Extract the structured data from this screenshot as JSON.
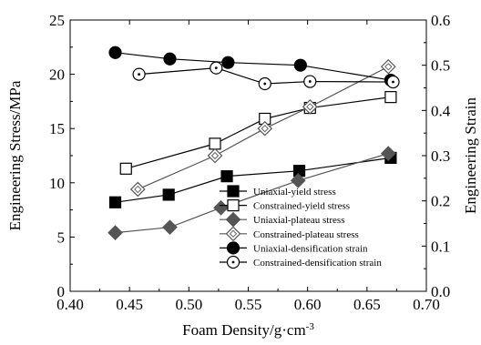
{
  "chart_data": {
    "type": "line",
    "xlabel": "Foam Density/g·cm",
    "xlabel_superscript": "-3",
    "ylabel_left": "Engineering Stress/MPa",
    "ylabel_right": "Engineering Strain",
    "xlim": [
      0.4,
      0.7
    ],
    "ylim_left": [
      0,
      25
    ],
    "ylim_right": [
      0.0,
      0.6
    ],
    "x_ticks": [
      "0.40",
      "0.45",
      "0.50",
      "0.55",
      "0.60",
      "0.65",
      "0.70"
    ],
    "y_left_ticks": [
      "0",
      "5",
      "10",
      "15",
      "20",
      "25"
    ],
    "y_right_ticks": [
      "0.0",
      "0.1",
      "0.2",
      "0.3",
      "0.4",
      "0.5",
      "0.6"
    ],
    "grid": false,
    "legend_position": "bottom-right",
    "series": [
      {
        "name": "Uniaxial-yield stress",
        "axis": "left",
        "marker": "square-filled",
        "color": "#000000",
        "x": [
          0.438,
          0.483,
          0.532,
          0.593,
          0.67
        ],
        "y": [
          8.2,
          8.9,
          10.6,
          11.1,
          12.3
        ]
      },
      {
        "name": "Constrained-yield stress",
        "axis": "left",
        "marker": "square-open",
        "color": "#000000",
        "x": [
          0.447,
          0.522,
          0.564,
          0.602,
          0.67
        ],
        "y": [
          11.3,
          13.6,
          15.9,
          16.9,
          17.9
        ]
      },
      {
        "name": "Uniaxial-plateau stress",
        "axis": "left",
        "marker": "diamond-filled",
        "color": "#555555",
        "x": [
          0.438,
          0.484,
          0.527,
          0.592,
          0.668
        ],
        "y": [
          5.4,
          5.9,
          7.7,
          10.2,
          12.7
        ]
      },
      {
        "name": "Constrained-plateau stress",
        "axis": "left",
        "marker": "diamond-open",
        "color": "#555555",
        "x": [
          0.457,
          0.522,
          0.564,
          0.602,
          0.668
        ],
        "y": [
          9.4,
          12.5,
          15.0,
          17.0,
          20.7
        ]
      },
      {
        "name": "Uniaxial-densification strain",
        "axis": "right",
        "marker": "circle-filled",
        "color": "#000000",
        "x": [
          0.438,
          0.484,
          0.533,
          0.594,
          0.67
        ],
        "y": [
          0.528,
          0.514,
          0.506,
          0.5,
          0.467
        ]
      },
      {
        "name": "Constrained-densification strain",
        "axis": "right",
        "marker": "circle-open",
        "color": "#000000",
        "x": [
          0.458,
          0.523,
          0.564,
          0.602,
          0.672
        ],
        "y": [
          0.48,
          0.494,
          0.459,
          0.464,
          0.463
        ]
      }
    ]
  }
}
